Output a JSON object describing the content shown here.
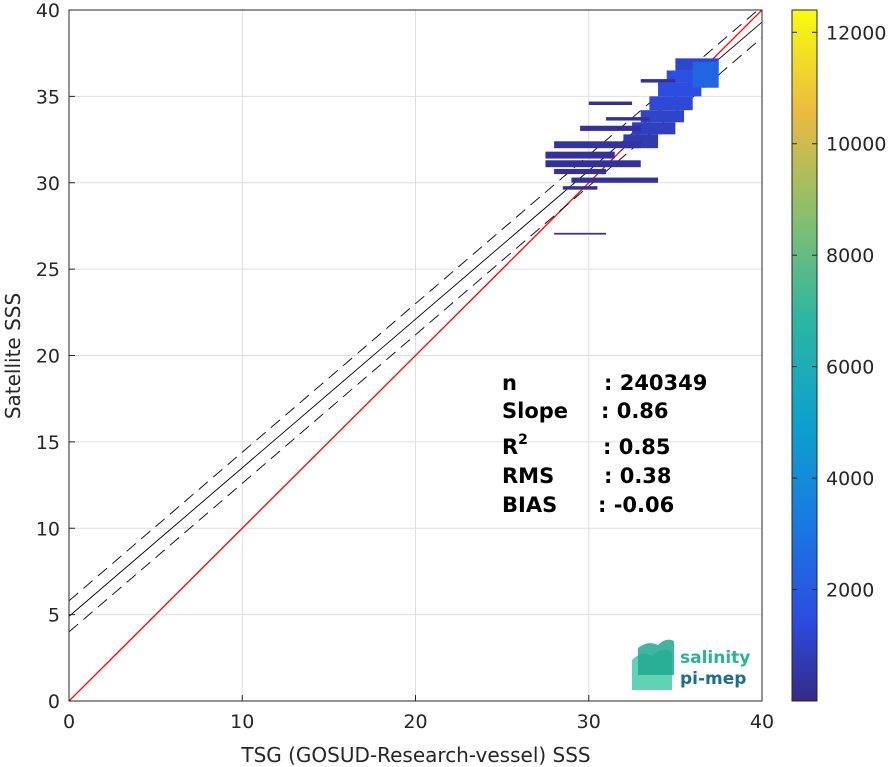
{
  "chart_data": {
    "type": "heatmap",
    "title": "",
    "xlabel": "TSG (GOSUD-Research-vessel) SSS",
    "ylabel": "Satellite SSS",
    "xlim": [
      0,
      40
    ],
    "ylim": [
      0,
      40
    ],
    "xticks": [
      0,
      10,
      20,
      30,
      40
    ],
    "yticks": [
      0,
      5,
      10,
      15,
      20,
      25,
      30,
      35,
      40
    ],
    "grid": true,
    "colorbar": {
      "range": [
        0,
        12400
      ],
      "ticks": [
        2000,
        4000,
        6000,
        8000,
        10000,
        12000
      ],
      "colormap": "parula"
    },
    "reference_line": {
      "name": "1:1",
      "slope": 1,
      "intercept": 0,
      "color": "#ff0000"
    },
    "fit_line": {
      "slope": 0.86,
      "intercept": 4.9,
      "color": "#000000"
    },
    "fit_band_offset": 0.9,
    "stats": [
      {
        "label": "n",
        "value": ": 240349"
      },
      {
        "label": "Slope",
        "value": ": 0.86"
      },
      {
        "label": "R2",
        "value": ": 0.85"
      },
      {
        "label": "RMS",
        "value": ": 0.38"
      },
      {
        "label": "BIAS",
        "value": ": -0.06"
      }
    ],
    "density_bins": [
      {
        "x": [
          35.0,
          37.5
        ],
        "y": [
          36.5,
          37.2
        ],
        "count": 1200
      },
      {
        "x": [
          34.5,
          37.0
        ],
        "y": [
          35.8,
          36.5
        ],
        "count": 1600
      },
      {
        "x": [
          34.0,
          36.5
        ],
        "y": [
          35.0,
          35.8
        ],
        "count": 1500
      },
      {
        "x": [
          33.5,
          36.0
        ],
        "y": [
          34.2,
          35.0
        ],
        "count": 1300
      },
      {
        "x": [
          33.0,
          35.5
        ],
        "y": [
          33.5,
          34.2
        ],
        "count": 1100
      },
      {
        "x": [
          32.5,
          35.0
        ],
        "y": [
          32.8,
          33.5
        ],
        "count": 900
      },
      {
        "x": [
          32.0,
          34.0
        ],
        "y": [
          32.0,
          32.8
        ],
        "count": 700
      },
      {
        "x": [
          28.0,
          33.0
        ],
        "y": [
          32.0,
          32.4
        ],
        "count": 400
      },
      {
        "x": [
          27.5,
          31.5
        ],
        "y": [
          31.4,
          31.8
        ],
        "count": 350
      },
      {
        "x": [
          27.5,
          33.0
        ],
        "y": [
          30.9,
          31.3
        ],
        "count": 300
      },
      {
        "x": [
          28.0,
          31.0
        ],
        "y": [
          30.5,
          30.8
        ],
        "count": 250
      },
      {
        "x": [
          29.0,
          34.0
        ],
        "y": [
          30.0,
          30.3
        ],
        "count": 250
      },
      {
        "x": [
          28.5,
          30.5
        ],
        "y": [
          29.6,
          29.8
        ],
        "count": 200
      },
      {
        "x": [
          29.5,
          33.0
        ],
        "y": [
          33.0,
          33.3
        ],
        "count": 300
      },
      {
        "x": [
          31.0,
          33.5
        ],
        "y": [
          33.6,
          33.8
        ],
        "count": 250
      },
      {
        "x": [
          30.0,
          32.5
        ],
        "y": [
          34.5,
          34.7
        ],
        "count": 200
      },
      {
        "x": [
          33.0,
          35.0
        ],
        "y": [
          35.8,
          36.0
        ],
        "count": 300
      },
      {
        "x": [
          28.0,
          30.0
        ],
        "y": [
          27.0,
          27.1
        ],
        "count": 150
      },
      {
        "x": [
          30.0,
          31.0
        ],
        "y": [
          27.0,
          27.1
        ],
        "count": 150
      },
      {
        "x": [
          36.0,
          37.5
        ],
        "y": [
          35.5,
          37.0
        ],
        "count": 2400
      }
    ],
    "logo": {
      "line1": "salinity",
      "line2": "pi-mep"
    }
  }
}
